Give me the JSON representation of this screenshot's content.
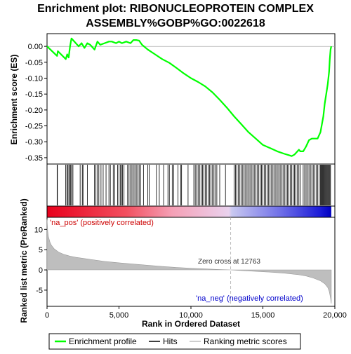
{
  "chart_data": {
    "type": "line",
    "title_lines": [
      "Enrichment plot: RIBONUCLEOPROTEIN COMPLEX",
      "ASSEMBLY%GOBP%GO:0022618"
    ],
    "es_panel": {
      "ylabel": "Enrichment score (ES)",
      "ylim": [
        -0.37,
        0.04
      ],
      "yticks": [
        0.0,
        -0.05,
        -0.1,
        -0.15,
        -0.2,
        -0.25,
        -0.3,
        -0.35
      ],
      "ytick_labels": [
        "0.00",
        "-0.05",
        "-0.10",
        "-0.15",
        "-0.20",
        "-0.25",
        "-0.30",
        "-0.35"
      ],
      "line_color": "#00ff00",
      "series": [
        {
          "x": [
            0,
            700,
            750,
            1300,
            1400,
            1500,
            1600,
            1700,
            2000,
            2200,
            2400,
            2600,
            2800,
            3000,
            3300,
            3500,
            3700,
            4000,
            4300,
            4500,
            4800,
            5000,
            5200,
            5500,
            5800,
            6000,
            6200,
            6400,
            6600,
            7000,
            7500,
            8000,
            8500,
            9000,
            9500,
            10000,
            10500,
            11000,
            11500,
            12000,
            12500,
            13000,
            13500,
            14000,
            14500,
            15000,
            15500,
            16000,
            16500,
            16800,
            17000,
            17200,
            17400,
            17500,
            17600,
            17800,
            18000,
            18200,
            18400,
            18600,
            18800,
            19000,
            19200,
            19300,
            19400,
            19500,
            19600,
            19650,
            19700,
            19750
          ],
          "y": [
            0.0,
            -0.03,
            -0.015,
            -0.04,
            -0.025,
            -0.035,
            0.0,
            0.025,
            0.01,
            0.0,
            0.01,
            -0.005,
            0.01,
            0.005,
            -0.01,
            0.015,
            0.005,
            0.01,
            0.015,
            0.015,
            0.01,
            0.015,
            0.01,
            0.015,
            0.01,
            0.02,
            0.02,
            0.018,
            0.005,
            -0.01,
            -0.025,
            -0.04,
            -0.052,
            -0.068,
            -0.085,
            -0.1,
            -0.112,
            -0.126,
            -0.145,
            -0.168,
            -0.193,
            -0.22,
            -0.245,
            -0.27,
            -0.29,
            -0.31,
            -0.32,
            -0.33,
            -0.338,
            -0.342,
            -0.345,
            -0.34,
            -0.33,
            -0.325,
            -0.33,
            -0.33,
            -0.315,
            -0.295,
            -0.29,
            -0.29,
            -0.29,
            -0.27,
            -0.22,
            -0.18,
            -0.15,
            -0.12,
            -0.08,
            -0.04,
            -0.01,
            0.0
          ]
        }
      ]
    },
    "hits": {
      "positions": [
        700,
        720,
        1300,
        1380,
        1450,
        1520,
        1600,
        1650,
        1720,
        1800,
        2300,
        2450,
        2500,
        2800,
        3300,
        3400,
        3500,
        3600,
        3750,
        3900,
        4100,
        4300,
        4400,
        4600,
        4700,
        4900,
        5000,
        5100,
        5200,
        5250,
        5350,
        5600,
        5700,
        5800,
        5900,
        6000,
        6100,
        6200,
        6300,
        6400,
        6500,
        6700,
        7000,
        7100,
        7600,
        7800,
        8100,
        8400,
        8500,
        8700,
        8800,
        9100,
        9300,
        9350,
        9800,
        10200,
        10300,
        10400,
        10500,
        10600,
        10700,
        10800,
        10900,
        11000,
        11100,
        11200,
        11300,
        11400,
        11500,
        11600,
        11700,
        11800,
        12000,
        12400,
        13000,
        13100,
        13200,
        13300,
        13400,
        13500,
        13600,
        13700,
        13800,
        13900,
        14000,
        14100,
        14200,
        14300,
        14400,
        14500,
        14600,
        14700,
        14800,
        14900,
        15000,
        15100,
        15200,
        15300,
        15400,
        15500,
        15600,
        15700,
        15800,
        15900,
        16000,
        16100,
        16200,
        16300,
        16400,
        16500,
        16600,
        16700,
        16800,
        16900,
        17000,
        17100,
        17200,
        17300,
        17400,
        17500,
        17600,
        17800,
        17900,
        18000,
        18100,
        18200,
        18300,
        18400,
        18500,
        18600,
        18700,
        18800,
        18900,
        19000,
        19050,
        19100,
        19150,
        19200,
        19250,
        19300,
        19350,
        19400,
        19450,
        19500,
        19550,
        19600,
        19650,
        19700
      ]
    },
    "ranking_panel": {
      "ylabel": "Ranked list metric (PreRanked)",
      "ylim": [
        -9,
        13
      ],
      "yticks": [
        10,
        5,
        0,
        -5
      ],
      "ytick_labels": [
        "10",
        "5",
        "0",
        "-5"
      ],
      "fill_color": "#bebebe",
      "x": [
        0,
        50,
        100,
        200,
        300,
        500,
        800,
        1200,
        1600,
        2000,
        3000,
        4000,
        5000,
        6000,
        7000,
        8000,
        9000,
        10000,
        11000,
        12000,
        12763,
        13500,
        14500,
        15500,
        16500,
        17500,
        18000,
        18500,
        19000,
        19300,
        19500,
        19600,
        19650,
        19700,
        19750
      ],
      "values": [
        12.5,
        9.5,
        8.2,
        6.9,
        6.1,
        5.2,
        4.4,
        3.8,
        3.4,
        3.1,
        2.6,
        2.1,
        1.75,
        1.45,
        1.15,
        0.85,
        0.6,
        0.4,
        0.25,
        0.1,
        0.0,
        -0.15,
        -0.35,
        -0.55,
        -0.8,
        -1.2,
        -1.5,
        -2.0,
        -2.7,
        -3.4,
        -4.3,
        -5.2,
        -6.0,
        -7.0,
        -8.3
      ],
      "zero_cross_label": "Zero cross at 12763",
      "zero_cross": 12763,
      "pos_label": "'na_pos' (positively correlated)",
      "neg_label": "'na_neg' (negatively correlated)",
      "pos_label_color": "#cc0000",
      "neg_label_color": "#0000cc"
    },
    "xaxis": {
      "xlabel": "Rank in Ordered Dataset",
      "xlim": [
        0,
        20000
      ],
      "xticks": [
        0,
        5000,
        10000,
        15000,
        20000
      ],
      "xtick_labels": [
        "0",
        "5,000",
        "10,000",
        "15,000",
        "20,000"
      ],
      "data_max": 19750
    },
    "legend": {
      "position": "bottom",
      "items": [
        {
          "label": "Enrichment profile",
          "color": "#00ff00"
        },
        {
          "label": "Hits",
          "color": "#000000"
        },
        {
          "label": "Ranking metric scores",
          "color": "#bebebe"
        }
      ]
    }
  }
}
